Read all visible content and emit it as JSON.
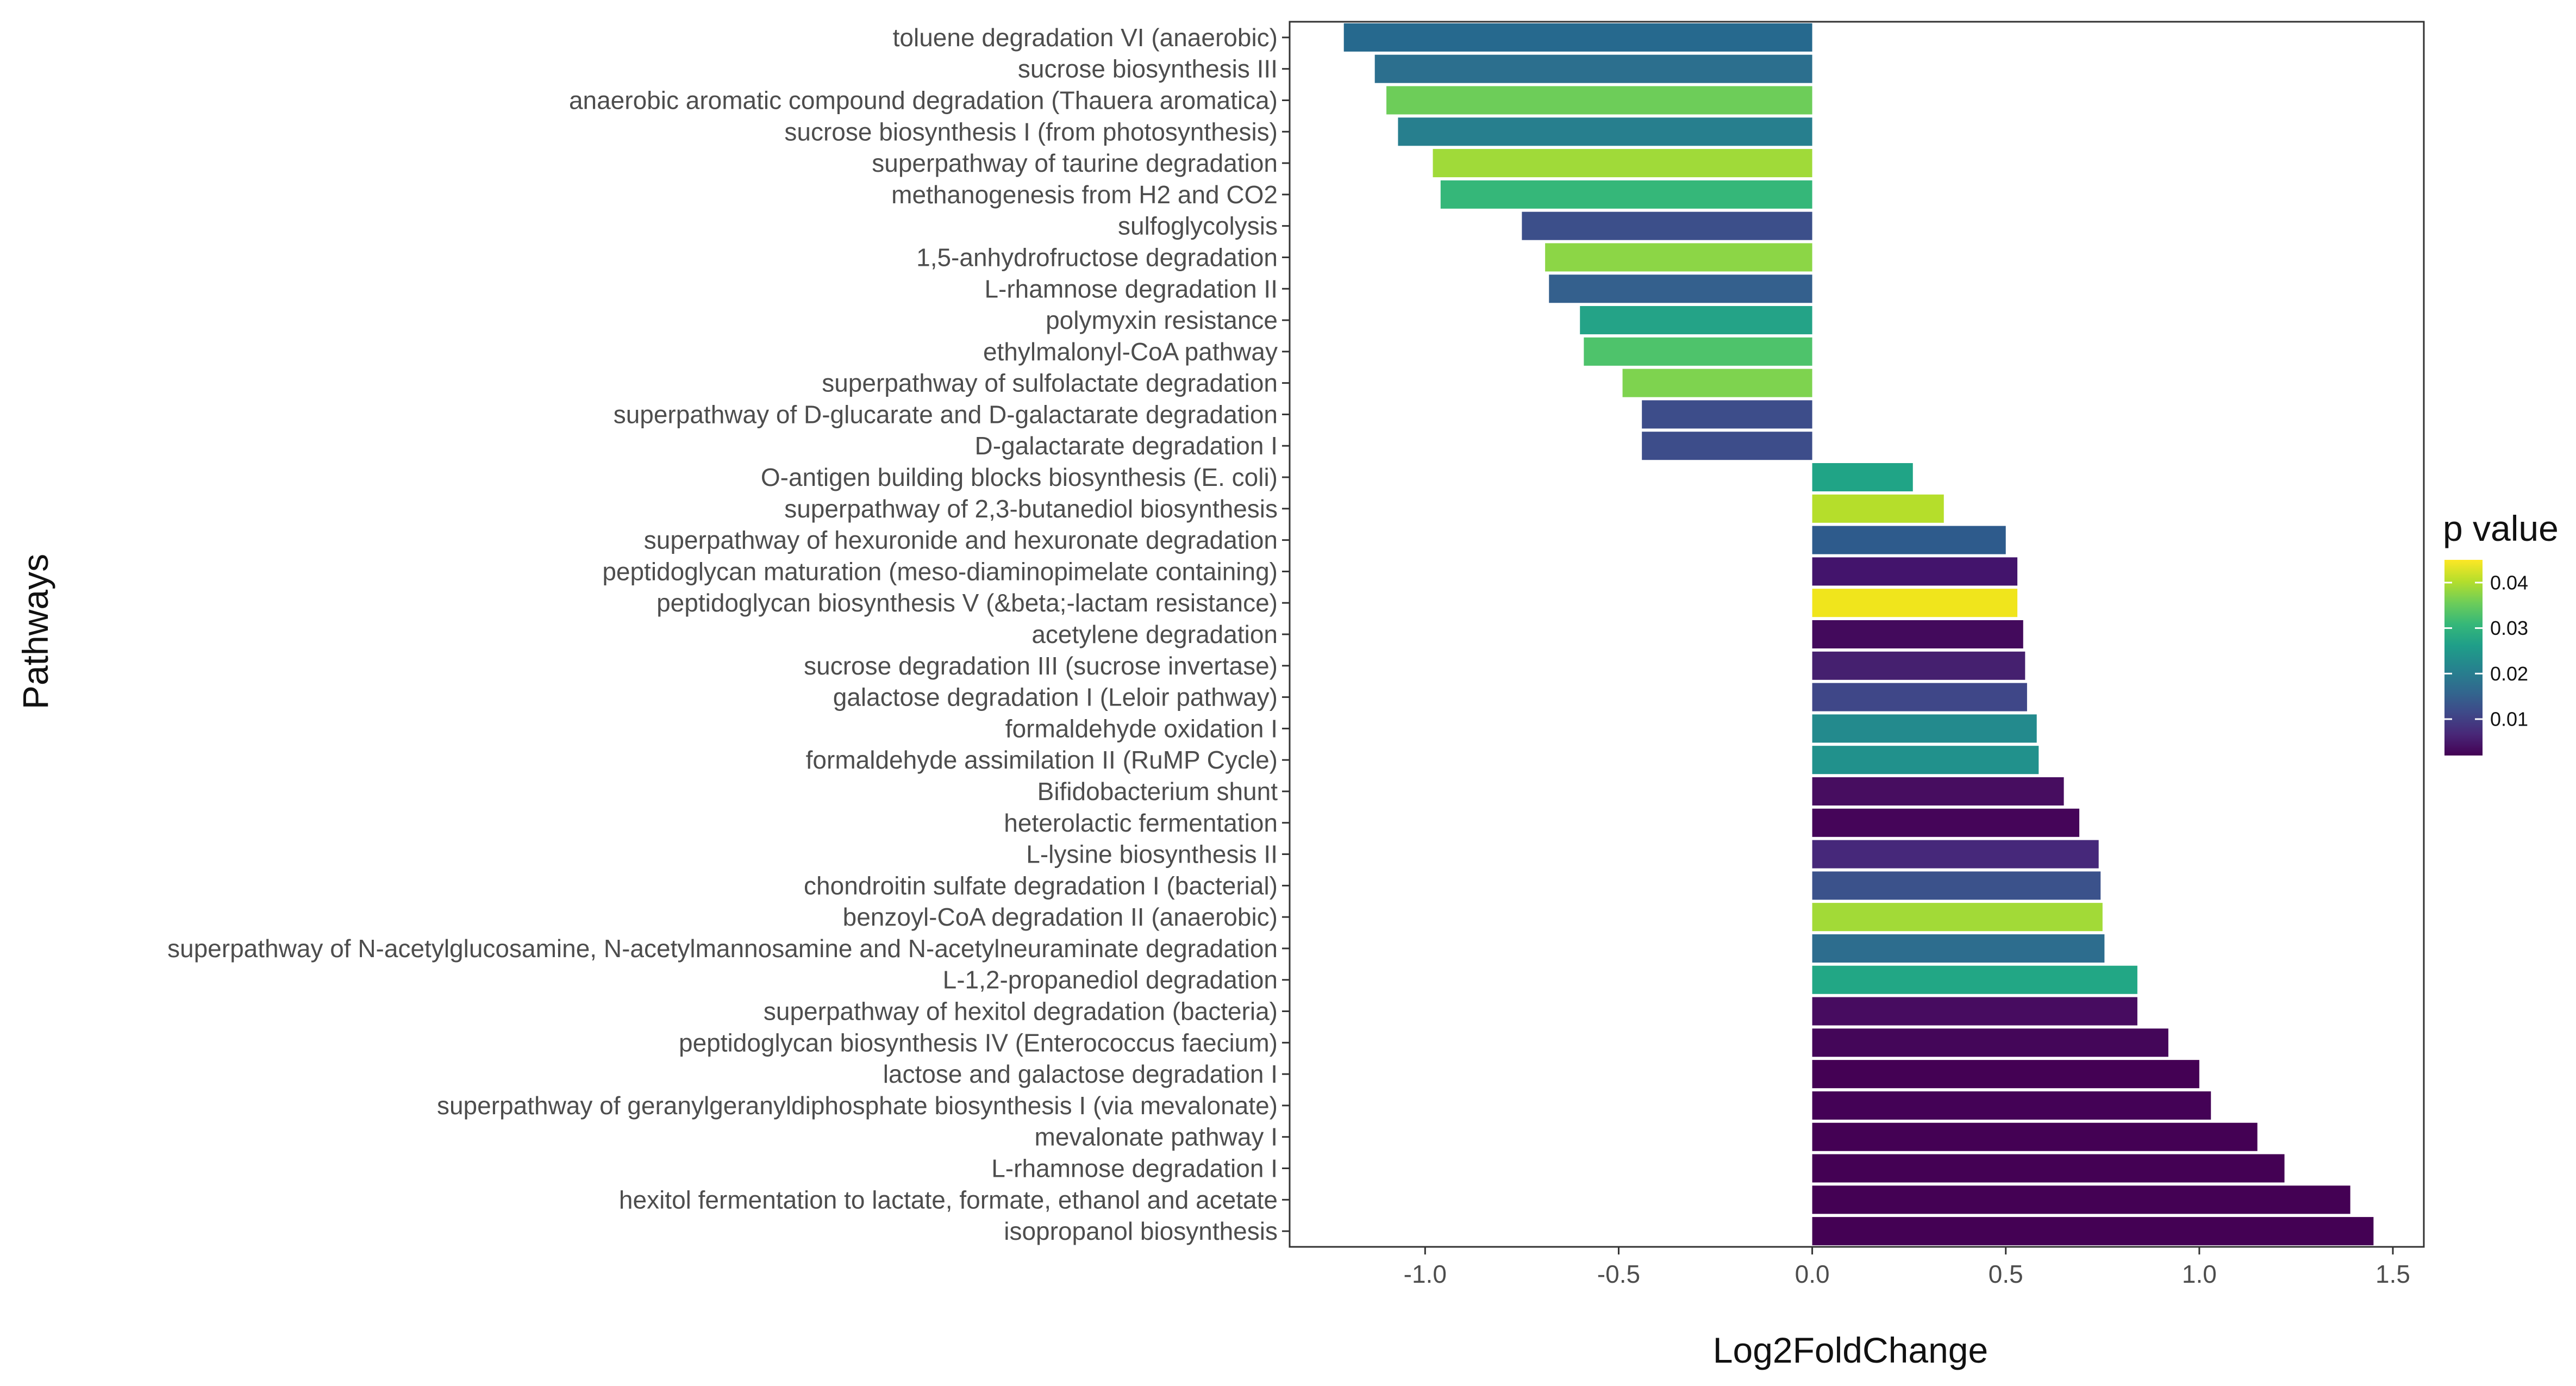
{
  "chart_data": {
    "type": "bar",
    "orientation": "horizontal",
    "xlabel": "Log2FoldChange",
    "ylabel": "Pathways",
    "xlim": [
      -1.35,
      1.58
    ],
    "xticks": [
      -1.0,
      -0.5,
      0.0,
      0.5,
      1.0,
      1.5
    ],
    "xtick_labels": [
      "-1.0",
      "-0.5",
      "0.0",
      "0.5",
      "1.0",
      "1.5"
    ],
    "grid": false,
    "legend": {
      "title": "p value",
      "placement": "right",
      "type": "colorbar",
      "range": [
        0.002,
        0.045
      ],
      "ticks": [
        0.01,
        0.02,
        0.03,
        0.04
      ],
      "tick_labels": [
        "0.01",
        "0.02",
        "0.03",
        "0.04"
      ],
      "palette": [
        "#440154",
        "#482878",
        "#3E4A89",
        "#31688E",
        "#26828E",
        "#1F9E89",
        "#35B779",
        "#6DCD59",
        "#B4DE2C",
        "#FDE725"
      ]
    },
    "categories": [
      "toluene degradation VI (anaerobic)",
      "sucrose biosynthesis III",
      "anaerobic aromatic compound degradation (Thauera aromatica)",
      "sucrose biosynthesis I (from photosynthesis)",
      "superpathway of taurine degradation",
      "methanogenesis from H2 and CO2",
      "sulfoglycolysis",
      "1,5-anhydrofructose degradation",
      "L-rhamnose degradation II",
      "polymyxin resistance",
      "ethylmalonyl-CoA pathway",
      "superpathway of sulfolactate degradation",
      "superpathway of D-glucarate and D-galactarate degradation",
      "D-galactarate degradation I",
      "O-antigen building blocks biosynthesis (E. coli)",
      "superpathway of 2,3-butanediol biosynthesis",
      "superpathway of hexuronide and hexuronate degradation",
      "peptidoglycan maturation (meso-diaminopimelate containing)",
      "peptidoglycan biosynthesis V (&beta;-lactam resistance)",
      "acetylene degradation",
      "sucrose degradation III (sucrose invertase)",
      "galactose degradation I (Leloir pathway)",
      "formaldehyde oxidation I",
      "formaldehyde assimilation II (RuMP Cycle)",
      "Bifidobacterium shunt",
      "heterolactic fermentation",
      "L-lysine biosynthesis II",
      "chondroitin sulfate degradation I (bacterial)",
      "benzoyl-CoA degradation II (anaerobic)",
      "superpathway of N-acetylglucosamine, N-acetylmannosamine and N-acetylneuraminate degradation",
      "L-1,2-propanediol degradation",
      "superpathway of hexitol degradation (bacteria)",
      "peptidoglycan biosynthesis IV (Enterococcus faecium)",
      "lactose and galactose degradation I",
      "superpathway of geranylgeranyldiphosphate biosynthesis I (via mevalonate)",
      "mevalonate pathway I",
      "L-rhamnose degradation I",
      "hexitol fermentation to lactate, formate, ethanol and acetate",
      "isopropanol biosynthesis"
    ],
    "values": [
      -1.21,
      -1.13,
      -1.1,
      -1.07,
      -0.98,
      -0.96,
      -0.75,
      -0.69,
      -0.68,
      -0.6,
      -0.59,
      -0.49,
      -0.44,
      -0.44,
      0.26,
      0.34,
      0.5,
      0.53,
      0.53,
      0.545,
      0.55,
      0.555,
      0.58,
      0.585,
      0.65,
      0.69,
      0.74,
      0.745,
      0.75,
      0.755,
      0.84,
      0.84,
      0.92,
      1.0,
      1.03,
      1.15,
      1.22,
      1.39,
      1.45
    ],
    "colors": [
      "#26698E",
      "#2C6F8E",
      "#6DCD59",
      "#277F8E",
      "#A0DA39",
      "#35B779",
      "#3C4F8A",
      "#8CD646",
      "#34608D",
      "#24A387",
      "#4EC36B",
      "#7ED34F",
      "#3D4D8A",
      "#3D4D8A",
      "#20A486",
      "#B5DE2B",
      "#2E5B8C",
      "#43146C",
      "#F0E51C",
      "#430A5C",
      "#45206F",
      "#3F4788",
      "#238A8D",
      "#21918C",
      "#470D60",
      "#450559",
      "#46287A",
      "#3B528B",
      "#A2DA37",
      "#2D6D8E",
      "#22A785",
      "#470C60",
      "#440659",
      "#440154",
      "#440256",
      "#440154",
      "#440154",
      "#440154",
      "#440154"
    ]
  }
}
